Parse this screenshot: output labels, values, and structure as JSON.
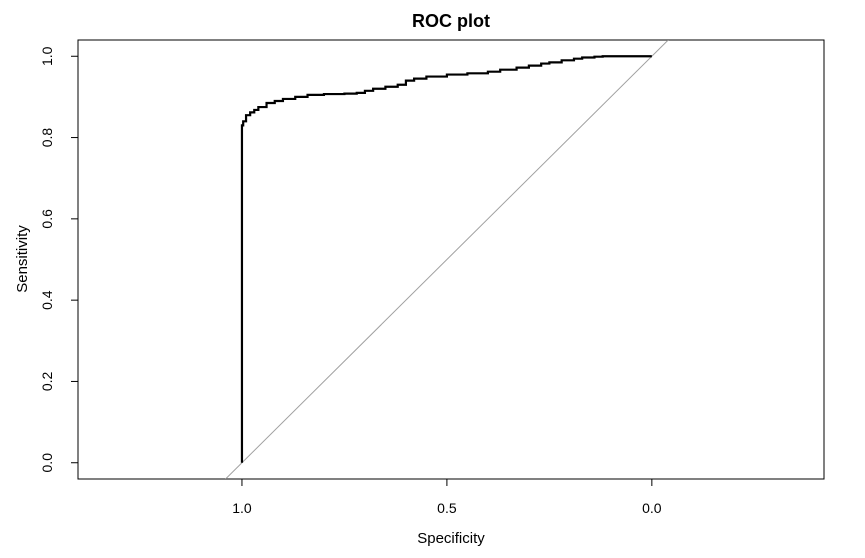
{
  "chart_data": {
    "type": "line",
    "title": "ROC plot",
    "xlabel": "Specificity",
    "ylabel": "Sensitivity",
    "xlim": [
      1.4,
      -0.42
    ],
    "ylim": [
      -0.04,
      1.04
    ],
    "x_reversed": true,
    "grid": false,
    "x_ticks": [
      {
        "value": 1.0,
        "label": "1.0"
      },
      {
        "value": 0.5,
        "label": "0.5"
      },
      {
        "value": 0.0,
        "label": "0.0"
      }
    ],
    "y_ticks": [
      {
        "value": 0.0,
        "label": "0.0"
      },
      {
        "value": 0.2,
        "label": "0.2"
      },
      {
        "value": 0.4,
        "label": "0.4"
      },
      {
        "value": 0.6,
        "label": "0.6"
      },
      {
        "value": 0.8,
        "label": "0.8"
      },
      {
        "value": 1.0,
        "label": "1.0"
      }
    ],
    "series": [
      {
        "color": "#000000",
        "x": [
          1.0,
          1.0,
          0.997,
          0.99,
          0.98,
          0.97,
          0.96,
          0.94,
          0.92,
          0.9,
          0.87,
          0.84,
          0.8,
          0.75,
          0.72,
          0.7,
          0.68,
          0.65,
          0.62,
          0.6,
          0.58,
          0.55,
          0.5,
          0.45,
          0.4,
          0.37,
          0.33,
          0.3,
          0.27,
          0.25,
          0.22,
          0.19,
          0.17,
          0.14,
          0.12,
          0.1,
          0.05,
          0.02,
          0.0
        ],
        "y": [
          0.0,
          0.83,
          0.84,
          0.855,
          0.862,
          0.868,
          0.875,
          0.885,
          0.89,
          0.895,
          0.9,
          0.905,
          0.907,
          0.908,
          0.91,
          0.915,
          0.92,
          0.925,
          0.93,
          0.94,
          0.945,
          0.95,
          0.955,
          0.958,
          0.962,
          0.967,
          0.972,
          0.977,
          0.982,
          0.985,
          0.99,
          0.994,
          0.997,
          0.999,
          1.0,
          1.0,
          1.0,
          1.0,
          1.0
        ]
      }
    ],
    "reference_line": {
      "color": "#a0a0a0",
      "x": [
        1.04,
        -0.04
      ],
      "y": [
        -0.04,
        1.04
      ]
    }
  }
}
